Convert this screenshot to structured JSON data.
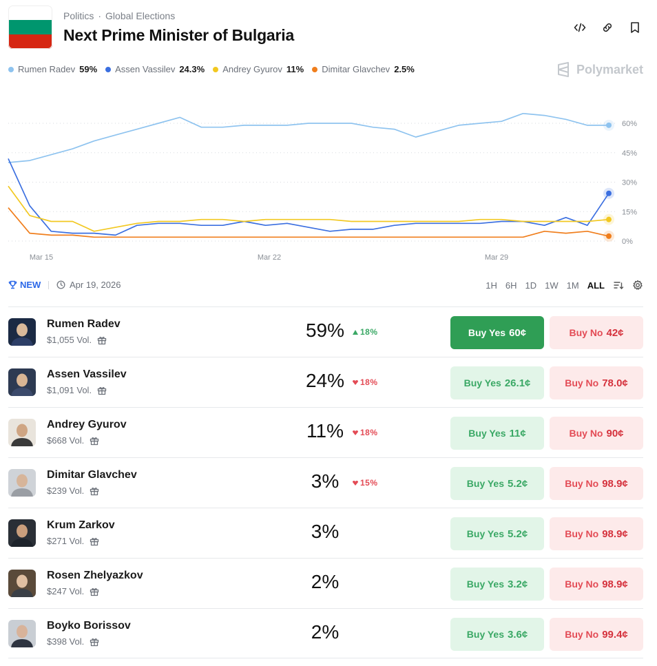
{
  "header": {
    "category": "Politics",
    "subcategory": "Global Elections",
    "title": "Next Prime Minister of Bulgaria",
    "flag_colors": [
      "#ffffff",
      "#00966e",
      "#d62612"
    ]
  },
  "brand": "Polymarket",
  "legend": [
    {
      "name": "Rumen Radev",
      "value": "59%",
      "color": "#8ec3ef"
    },
    {
      "name": "Assen Vassilev",
      "value": "24.3%",
      "color": "#3b6fe0"
    },
    {
      "name": "Andrey Gyurov",
      "value": "11%",
      "color": "#f2c820"
    },
    {
      "name": "Dimitar Glavchev",
      "value": "2.5%",
      "color": "#f07e1c"
    }
  ],
  "chart_data": {
    "type": "line",
    "x_ticks": [
      "Mar 15",
      "Mar 22",
      "Mar 29"
    ],
    "y_ticks": [
      "60%",
      "45%",
      "30%",
      "15%",
      "0%"
    ],
    "ylim": [
      0,
      60
    ],
    "grid": true,
    "series": [
      {
        "name": "Rumen Radev",
        "color": "#8ec3ef",
        "values": [
          40,
          41,
          44,
          47,
          51,
          54,
          57,
          60,
          63,
          58,
          58,
          59,
          59,
          59,
          60,
          60,
          60,
          58,
          57,
          53,
          56,
          59,
          60,
          61,
          65,
          64,
          62,
          59,
          59
        ]
      },
      {
        "name": "Assen Vassilev",
        "color": "#3b6fe0",
        "values": [
          42,
          18,
          5,
          4,
          4,
          3,
          8,
          9,
          9,
          8,
          8,
          10,
          8,
          9,
          7,
          5,
          6,
          6,
          8,
          9,
          9,
          9,
          9,
          10,
          10,
          8,
          12,
          8,
          24.3
        ]
      },
      {
        "name": "Andrey Gyurov",
        "color": "#f2c820",
        "values": [
          28,
          13,
          10,
          10,
          5,
          7,
          9,
          10,
          10,
          11,
          11,
          10,
          11,
          11,
          11,
          11,
          10,
          10,
          10,
          10,
          10,
          10,
          11,
          11,
          10,
          10,
          10,
          10,
          11
        ]
      },
      {
        "name": "Dimitar Glavchev",
        "color": "#f07e1c",
        "values": [
          17,
          4,
          3,
          3,
          2,
          2,
          2,
          2,
          2,
          2,
          2,
          2,
          2,
          2,
          2,
          2,
          2,
          2,
          2,
          2,
          2,
          2,
          2,
          2,
          2,
          5,
          4,
          5,
          2.5
        ]
      }
    ]
  },
  "toolbar": {
    "new_label": "NEW",
    "date": "Apr 19, 2026",
    "ranges": [
      "1H",
      "6H",
      "1D",
      "1W",
      "1M",
      "ALL"
    ],
    "active_range": "ALL"
  },
  "candidates": [
    {
      "name": "Rumen Radev",
      "volume": "$1,055 Vol.",
      "percent": "59%",
      "change": "18%",
      "direction": "up",
      "yes_label": "Buy Yes",
      "yes_price": "60¢",
      "no_label": "Buy No",
      "no_price": "42¢",
      "primary": true
    },
    {
      "name": "Assen Vassilev",
      "volume": "$1,091 Vol.",
      "percent": "24%",
      "change": "18%",
      "direction": "down",
      "yes_label": "Buy Yes",
      "yes_price": "26.1¢",
      "no_label": "Buy No",
      "no_price": "78.0¢",
      "primary": false
    },
    {
      "name": "Andrey Gyurov",
      "volume": "$668 Vol.",
      "percent": "11%",
      "change": "18%",
      "direction": "down",
      "yes_label": "Buy Yes",
      "yes_price": "11¢",
      "no_label": "Buy No",
      "no_price": "90¢",
      "primary": false
    },
    {
      "name": "Dimitar Glavchev",
      "volume": "$239 Vol.",
      "percent": "3%",
      "change": "15%",
      "direction": "down",
      "yes_label": "Buy Yes",
      "yes_price": "5.2¢",
      "no_label": "Buy No",
      "no_price": "98.9¢",
      "primary": false
    },
    {
      "name": "Krum Zarkov",
      "volume": "$271 Vol.",
      "percent": "3%",
      "change": "",
      "direction": "none",
      "yes_label": "Buy Yes",
      "yes_price": "5.2¢",
      "no_label": "Buy No",
      "no_price": "98.9¢",
      "primary": false
    },
    {
      "name": "Rosen Zhelyazkov",
      "volume": "$247 Vol.",
      "percent": "2%",
      "change": "",
      "direction": "none",
      "yes_label": "Buy Yes",
      "yes_price": "3.2¢",
      "no_label": "Buy No",
      "no_price": "98.9¢",
      "primary": false
    },
    {
      "name": "Boyko Borissov",
      "volume": "$398 Vol.",
      "percent": "2%",
      "change": "",
      "direction": "none",
      "yes_label": "Buy Yes",
      "yes_price": "3.6¢",
      "no_label": "Buy No",
      "no_price": "99.4¢",
      "primary": false
    }
  ]
}
